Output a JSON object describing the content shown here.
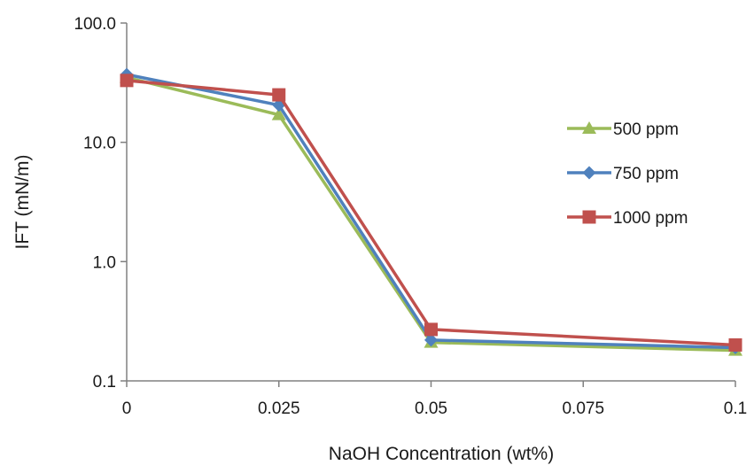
{
  "chart_data": {
    "type": "line",
    "title": "",
    "xlabel": "NaOH Concentration (wt%)",
    "ylabel": "IFT (mN/m)",
    "x": [
      0,
      0.025,
      0.05,
      0.075,
      0.1
    ],
    "x_tick_labels": [
      "0",
      "0.025",
      "0.05",
      "0.075",
      "0.1"
    ],
    "y_scale": "log",
    "ylim": [
      0.1,
      100
    ],
    "y_tick_values": [
      0.1,
      1,
      10,
      100
    ],
    "y_tick_labels": [
      "0.1",
      "1.0",
      "10.0",
      "100.0"
    ],
    "xlim": [
      0,
      0.1
    ],
    "grid": false,
    "legend_position": "right",
    "series": [
      {
        "name": "500 ppm",
        "color": "#9bbb59",
        "marker": "triangle",
        "x": [
          0,
          0.025,
          0.05,
          0.1
        ],
        "values": [
          35,
          17,
          0.21,
          0.18
        ]
      },
      {
        "name": "750 ppm",
        "color": "#4f81bd",
        "marker": "diamond",
        "x": [
          0,
          0.025,
          0.05,
          0.1
        ],
        "values": [
          37,
          20.5,
          0.22,
          0.19
        ]
      },
      {
        "name": "1000 ppm",
        "color": "#c0504d",
        "marker": "square",
        "x": [
          0,
          0.025,
          0.05,
          0.1
        ],
        "values": [
          33,
          25,
          0.27,
          0.2
        ]
      }
    ]
  }
}
